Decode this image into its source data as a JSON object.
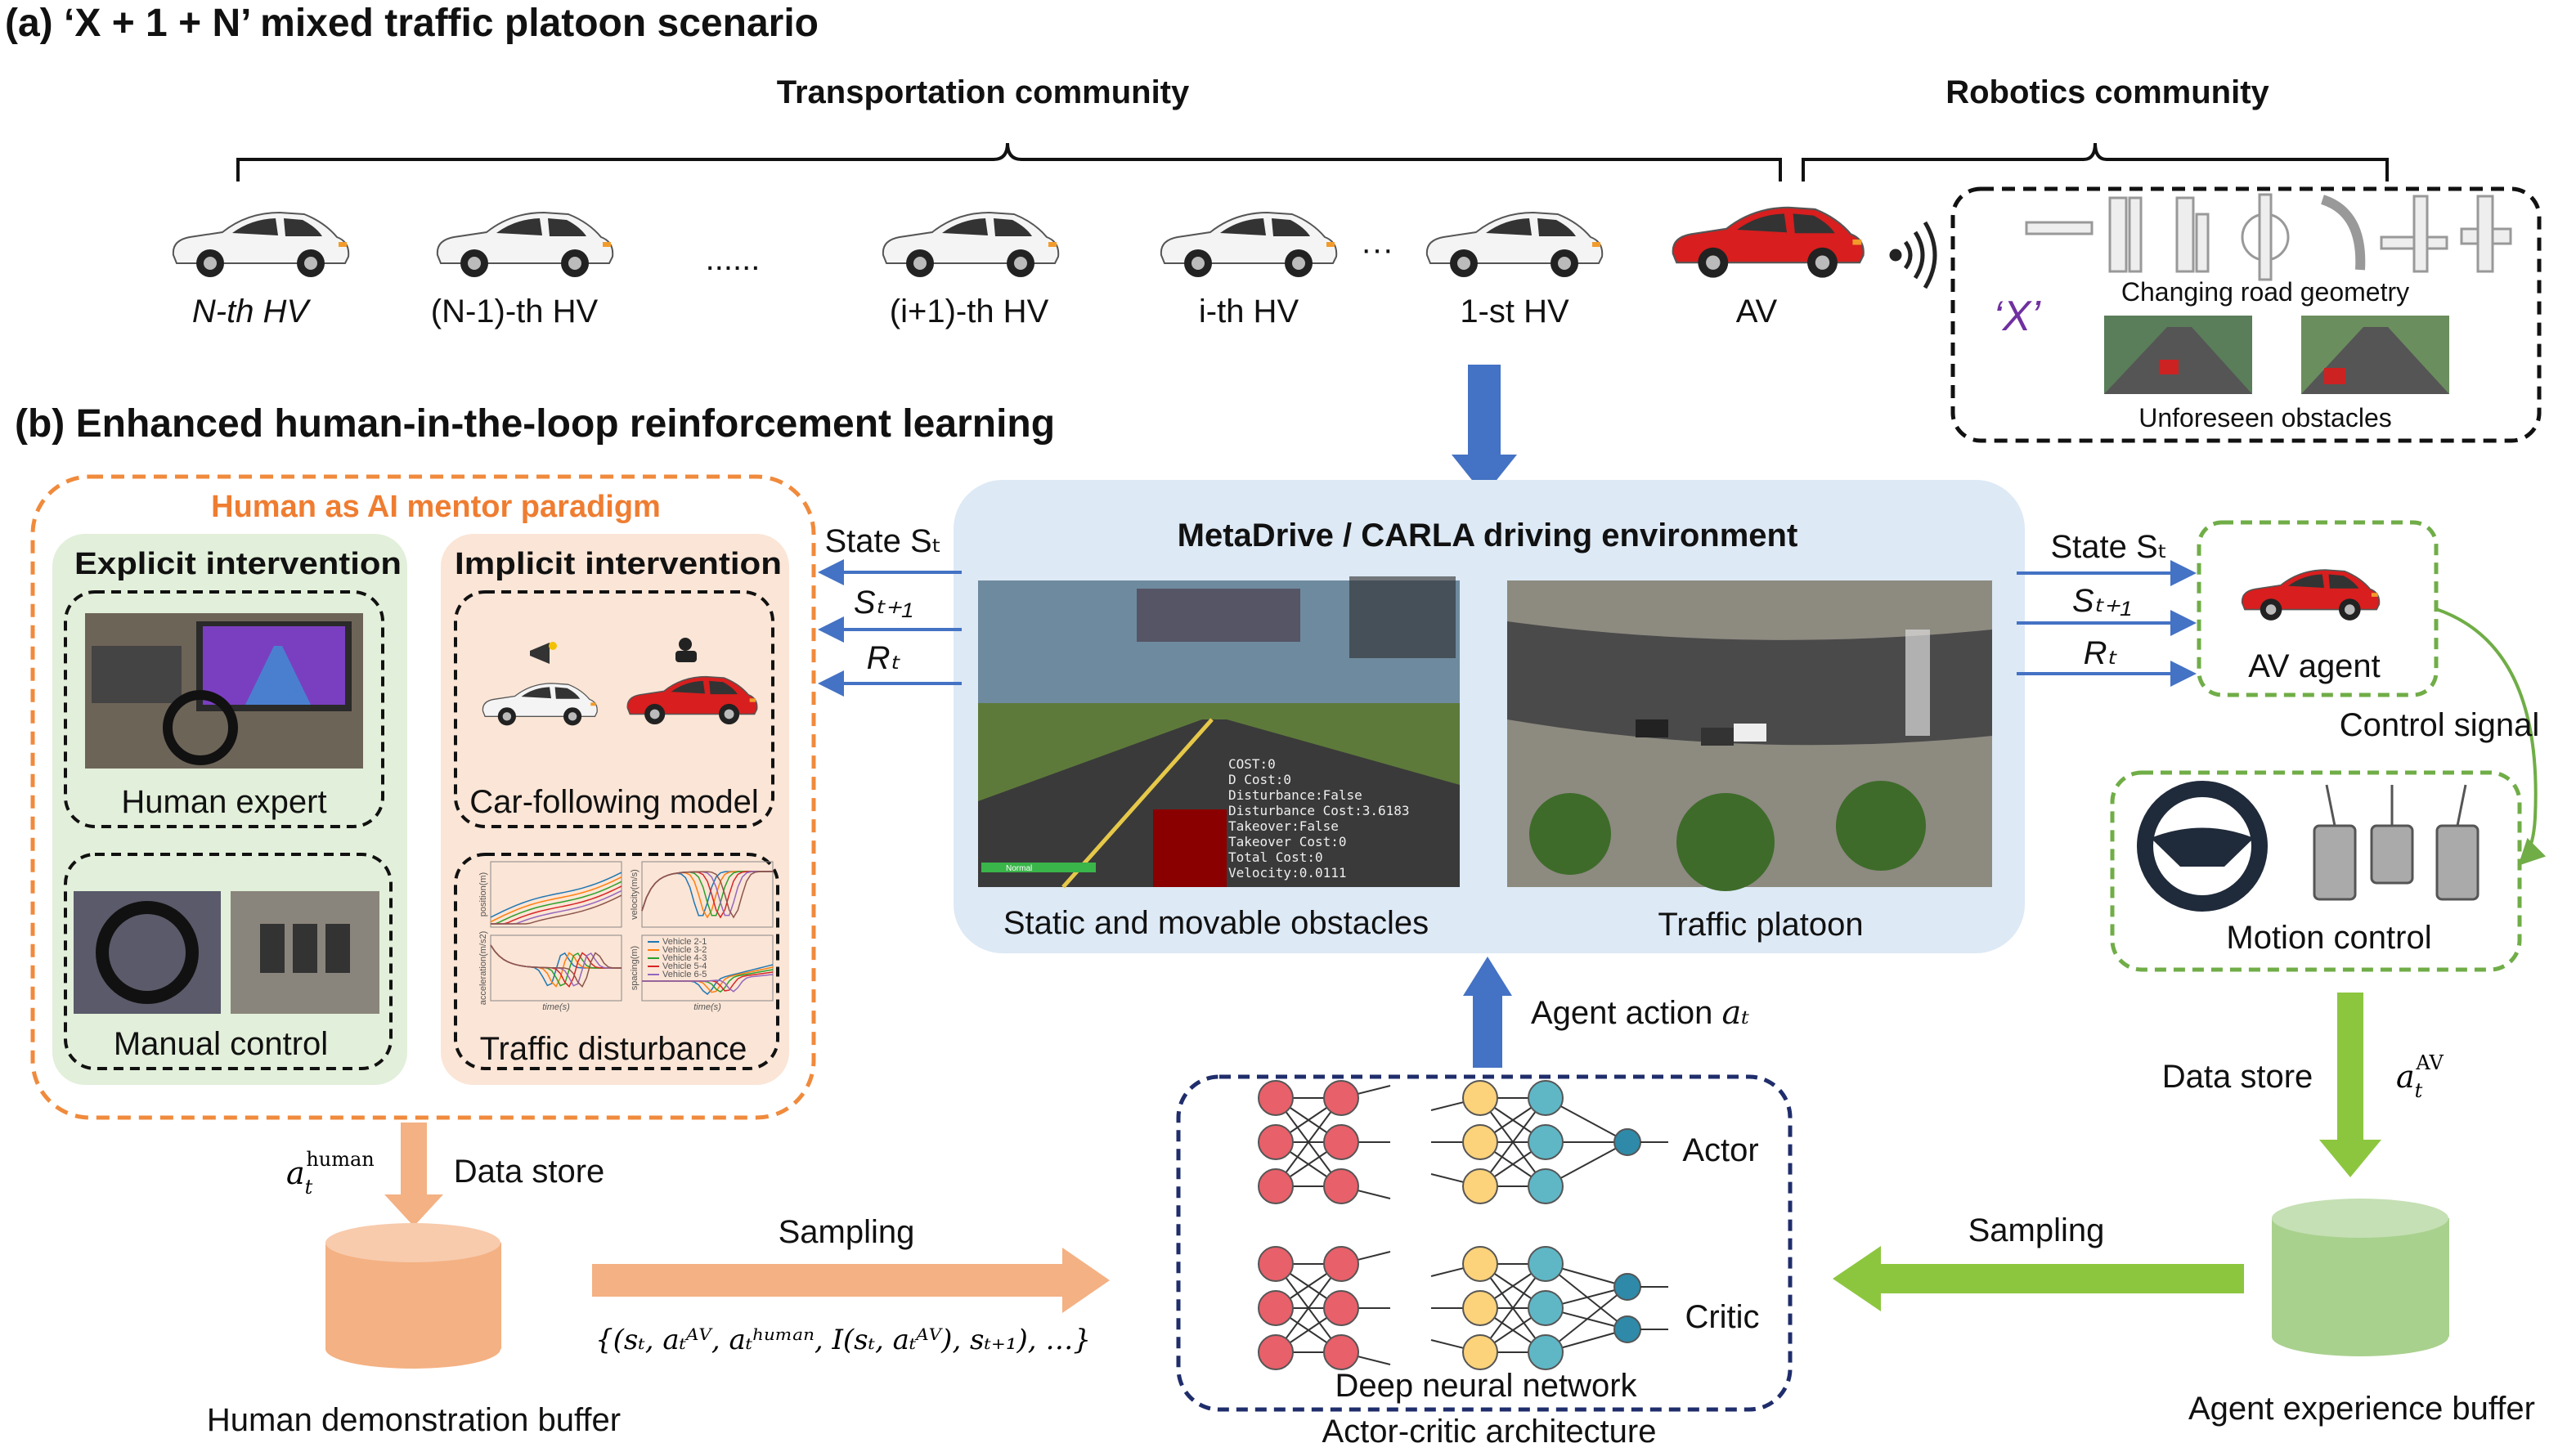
{
  "section_a": {
    "title": "(a) ‘X + 1 + N’ mixed traffic platoon scenario",
    "transport_label": "Transportation community",
    "robotics_label": "Robotics community",
    "vehicles": [
      "N-th HV",
      "(N-1)-th HV",
      "(i+1)-th HV",
      "i-th HV",
      "1-st HV",
      "AV"
    ],
    "ellipsis1": "......",
    "ellipsis2": "···",
    "x_label": "‘X’",
    "road_geometry_label": "Changing road geometry",
    "obstacles_label": "Unforeseen obstacles"
  },
  "section_b": {
    "title": "(b) Enhanced human-in-the-loop reinforcement learning",
    "mentor_title": "Human as AI mentor paradigm",
    "explicit_title": "Explicit intervention",
    "implicit_title": "Implicit intervention",
    "human_expert": "Human expert",
    "manual_control": "Manual control",
    "car_following": "Car-following model",
    "traffic_disturbance": "Traffic disturbance",
    "disturbance_plots": {
      "ylabels": [
        "position(m)",
        "velocity(m/s)",
        "acceleration(m/s2)",
        "spacing(m)"
      ],
      "xlabel": "time(s)",
      "legend": [
        "Vehicle 2-1",
        "Vehicle 3-2",
        "Vehicle 4-3",
        "Vehicle 5-4",
        "Vehicle 6-5"
      ],
      "colors": [
        "#1f77b4",
        "#ff7f0e",
        "#2ca02c",
        "#d62728",
        "#9467bd",
        "#8c564b"
      ]
    },
    "env_title": "MetaDrive / CARLA driving environment",
    "env_left_caption": "Static and movable obstacles",
    "env_right_caption": "Traffic platoon",
    "hud": [
      "COST:0",
      "D Cost:0",
      "Disturbance:False",
      "Disturbance Cost:3.6183",
      "Takeover:False",
      "Takeover Cost:0",
      "Total Cost:0",
      "Velocity:0.0111"
    ],
    "hud_status": "Normal",
    "left_signals": [
      "State Sₜ",
      "Sₜ₊₁",
      "Rₜ"
    ],
    "right_signals": [
      "State Sₜ",
      "Sₜ₊₁",
      "Rₜ"
    ],
    "av_agent": "AV agent",
    "control_signal": "Control signal",
    "motion_control": "Motion control",
    "data_store_right": "Data store",
    "a_av": {
      "base": "a",
      "sub": "t",
      "sup": "AV"
    },
    "agent_buffer": "Agent experience buffer",
    "sampling_right": "Sampling",
    "agent_action": "Agent action",
    "agent_action_symbol": "aₜ",
    "actor": "Actor",
    "critic": "Critic",
    "dnn": "Deep neural network",
    "actor_critic": "Actor-critic architecture",
    "a_human": {
      "base": "a",
      "sub": "t",
      "sup": "human"
    },
    "data_store_left": "Data store",
    "human_buffer": "Human demonstration buffer",
    "sampling_left": "Sampling",
    "formula": "{(sₜ, aₜᴬⱽ, aₜʰᵘᵐᵃⁿ, I(sₜ, aₜᴬⱽ), sₜ₊₁), …}"
  },
  "colors": {
    "orange_border": "#f08a3c",
    "green_panel": "#e2efda",
    "peach_panel": "#fbe5d6",
    "env_panel": "#dde9f5",
    "blue_arrow": "#4472c4",
    "green_arrow": "#8cc63f",
    "orange_arrow": "#f4b183",
    "x_purple": "#7030a0"
  }
}
